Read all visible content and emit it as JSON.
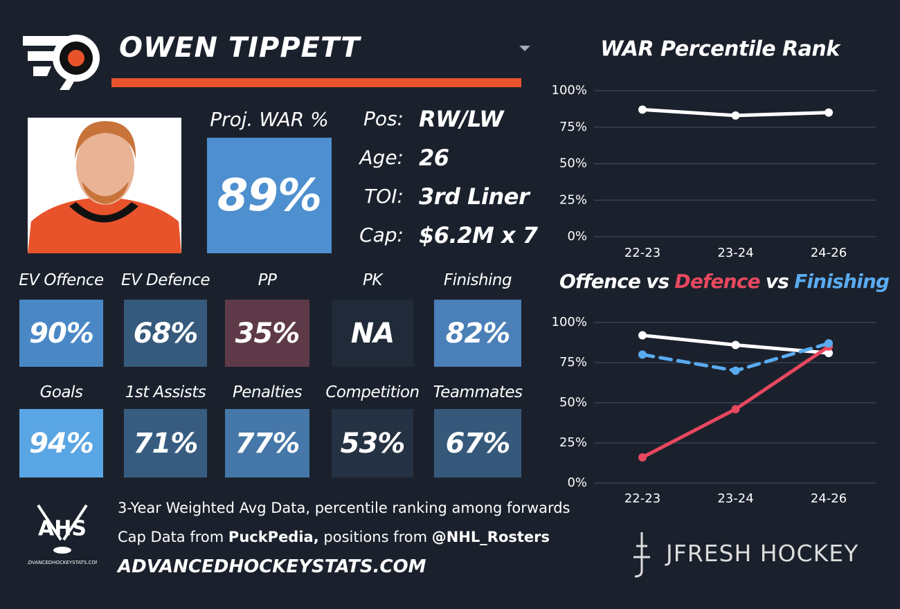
{
  "header": {
    "name": "OWEN TIPPETT"
  },
  "projection": {
    "label": "Proj. WAR %",
    "value": "89%",
    "color": "#4d8fcf"
  },
  "info": [
    {
      "label": "Pos:",
      "value": "RW/LW"
    },
    {
      "label": "Age:",
      "value": "26"
    },
    {
      "label": "TOI:",
      "value": "3rd Liner"
    },
    {
      "label": "Cap:",
      "value": "$6.2M x 7"
    }
  ],
  "tiles": [
    [
      {
        "label": "EV Offence",
        "value": "90%",
        "color": "#4a88c5"
      },
      {
        "label": "EV Defence",
        "value": "68%",
        "color": "#355a7c"
      },
      {
        "label": "PP",
        "value": "35%",
        "color": "#5e3a48"
      },
      {
        "label": "PK",
        "value": "NA",
        "color": "#202a38"
      },
      {
        "label": "Finishing",
        "value": "82%",
        "color": "#4a7fb8"
      }
    ],
    [
      {
        "label": "Goals",
        "value": "94%",
        "color": "#5aa5e3"
      },
      {
        "label": "1st Assists",
        "value": "71%",
        "color": "#375c80"
      },
      {
        "label": "Penalties",
        "value": "77%",
        "color": "#4577a8"
      },
      {
        "label": "Competition",
        "value": "53%",
        "color": "#243243"
      },
      {
        "label": "Teammates",
        "value": "67%",
        "color": "#36597b"
      }
    ]
  ],
  "footer": {
    "note": "3-Year Weighted Avg Data, percentile ranking among forwards",
    "cap_prefix": "Cap Data from",
    "cap_source": "PuckPedia,",
    "pos_prefix": "positions from",
    "pos_source": "@NHL_Rosters",
    "site": "ADVANCEDHOCKEYSTATS.COM",
    "logo": "AHS",
    "logo_caption": "ADVANCEDHOCKEYSTATS.COM",
    "brand": "JFRESH HOCKEY"
  },
  "chart_data": [
    {
      "type": "line",
      "title": "WAR Percentile Rank",
      "categories": [
        "22-23",
        "23-24",
        "24-26"
      ],
      "series": [
        {
          "color": "#ffffff",
          "values": [
            87,
            83,
            85
          ]
        }
      ],
      "ylim": [
        0,
        100
      ],
      "yticks": [
        {
          "value": 0,
          "label": "0%"
        },
        {
          "value": 25,
          "label": "25%"
        },
        {
          "value": 50,
          "label": "50%"
        },
        {
          "value": 75,
          "label": "75%"
        },
        {
          "value": 100,
          "label": "100%"
        }
      ],
      "grid": true
    },
    {
      "type": "line",
      "title_separator": "vs",
      "categories": [
        "22-23",
        "23-24",
        "24-26"
      ],
      "series": [
        {
          "name": "Offence",
          "color": "#ffffff",
          "values": [
            92,
            86,
            81
          ]
        },
        {
          "name": "Defence",
          "color": "#e8485f",
          "values": [
            16,
            46,
            85
          ]
        },
        {
          "name": "Finishing",
          "color": "#5aabf0",
          "dash": true,
          "values": [
            80,
            70,
            87
          ]
        }
      ],
      "ylim": [
        0,
        100
      ],
      "yticks": [
        {
          "value": 0,
          "label": "0%"
        },
        {
          "value": 25,
          "label": "25%"
        },
        {
          "value": 50,
          "label": "50%"
        },
        {
          "value": 75,
          "label": "75%"
        },
        {
          "value": 100,
          "label": "100%"
        }
      ],
      "grid": true
    }
  ]
}
